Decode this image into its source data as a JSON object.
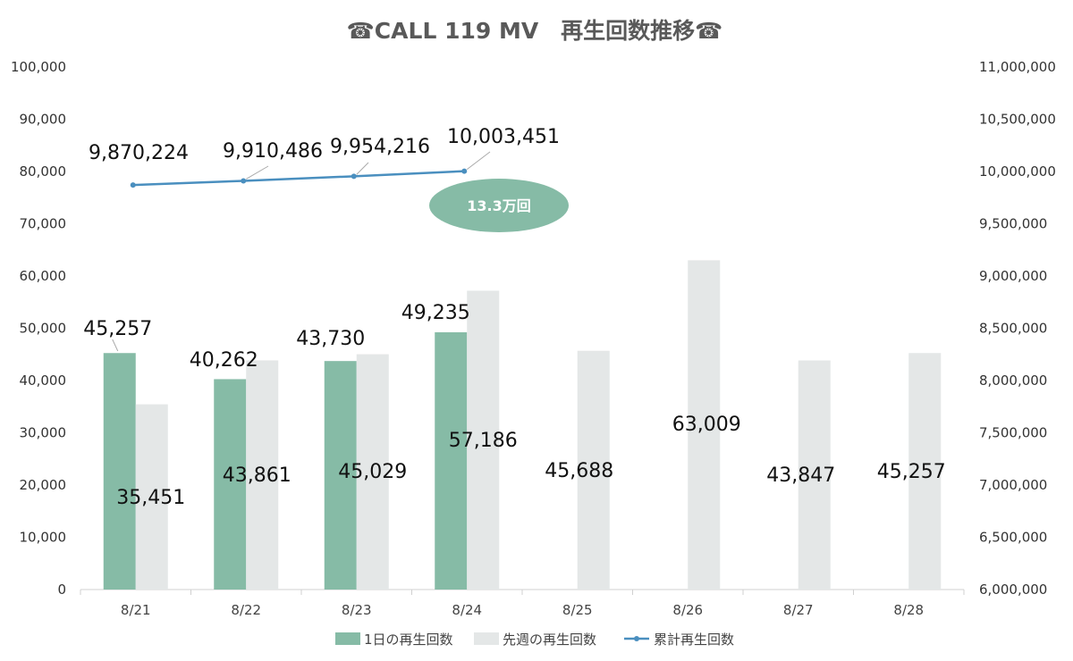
{
  "chart_data": {
    "type": "bar",
    "title": "☎CALL 119 MV　再生回数推移☎",
    "categories": [
      "8/21",
      "8/22",
      "8/23",
      "8/24",
      "8/25",
      "8/26",
      "8/27",
      "8/28"
    ],
    "series": [
      {
        "name": "1日の再生回数",
        "type": "bar",
        "axis": "left",
        "color": "#86bba6",
        "values": [
          45257,
          40262,
          43730,
          49235,
          null,
          null,
          null,
          null
        ],
        "labels": [
          "45,257",
          "40,262",
          "43,730",
          "49,235"
        ]
      },
      {
        "name": "先週の再生回数",
        "type": "bar",
        "axis": "left",
        "color": "#e4e7e7",
        "values": [
          35451,
          43861,
          45029,
          57186,
          45688,
          63009,
          43847,
          45257
        ],
        "labels": [
          "35,451",
          "43,861",
          "45,029",
          "57,186",
          "45,688",
          "63,009",
          "43,847",
          "45,257"
        ]
      },
      {
        "name": "累計再生回数",
        "type": "line",
        "axis": "right",
        "color": "#4a8fbf",
        "values": [
          9870224,
          9910486,
          9954216,
          10003451,
          null,
          null,
          null,
          null
        ],
        "labels": [
          "9,870,224",
          "9,910,486",
          "9,954,216",
          "10,003,451"
        ]
      }
    ],
    "y_left": {
      "range": [
        0,
        100000
      ],
      "ticks": [
        "0",
        "10,000",
        "20,000",
        "30,000",
        "40,000",
        "50,000",
        "60,000",
        "70,000",
        "80,000",
        "90,000",
        "100,000"
      ]
    },
    "y_right": {
      "range": [
        6000000,
        11000000
      ],
      "ticks": [
        "6,000,000",
        "6,500,000",
        "7,000,000",
        "7,500,000",
        "8,000,000",
        "8,500,000",
        "9,000,000",
        "9,500,000",
        "10,000,000",
        "10,500,000",
        "11,000,000"
      ]
    },
    "annotation": {
      "text": "13.3万回",
      "color": "#86bba6"
    },
    "legend": "bottom",
    "grid": false
  }
}
